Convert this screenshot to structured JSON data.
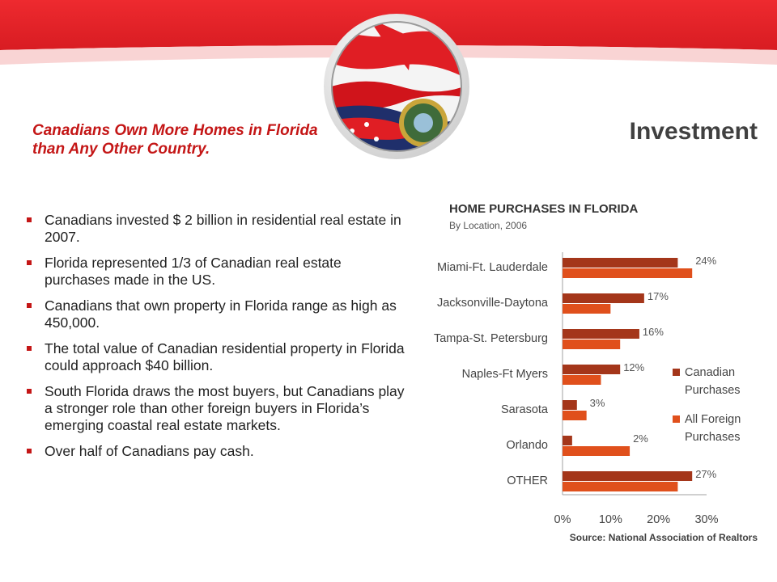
{
  "slide": {
    "title": "Investment",
    "subtitle": "Canadians Own More Homes in Florida than Any Other Country.",
    "bullets": [
      "Canadians invested $ 2 billion in residential real estate in 2007.",
      "Florida represented 1/3 of Canadian real estate purchases made in the US.",
      "Canadians that own property in Florida range as high as 450,000.",
      "The total value of Canadian residential property in Florida could approach $40 billion.",
      "South Florida draws the most buyers, but Canadians play a stronger role than other foreign buyers in Florida’s emerging coastal real estate markets.",
      "Over half of Canadians pay cash."
    ],
    "source": "Source:  National Association of Realtors"
  },
  "colors": {
    "banner_red": "#e8262c",
    "accent_red": "#c41616",
    "canadian_series": "#a4361a",
    "foreign_series": "#e0501c",
    "text_dark": "#404040"
  },
  "chart_data": {
    "type": "bar",
    "orientation": "horizontal",
    "title": "HOME PURCHASES IN FLORIDA",
    "subtitle": "By Location, 2006",
    "categories": [
      "Miami-Ft. Lauderdale",
      "Jacksonville-Daytona",
      "Tampa-St. Petersburg",
      "Naples-Ft Myers",
      "Sarasota",
      "Orlando",
      "OTHER"
    ],
    "series": [
      {
        "name": "Canadian Purchases",
        "values": [
          24,
          17,
          16,
          12,
          3,
          2,
          27
        ],
        "labels": [
          "24%",
          "17%",
          "16%",
          "12%",
          "3%",
          "2%",
          "27%"
        ]
      },
      {
        "name": "All Foreign Purchases",
        "values": [
          27,
          10,
          12,
          8,
          5,
          14,
          24
        ]
      }
    ],
    "xlim": [
      0,
      30
    ],
    "x_ticks": [
      "0%",
      "10%",
      "20%",
      "30%"
    ],
    "legend_position": "right",
    "grid": false
  }
}
